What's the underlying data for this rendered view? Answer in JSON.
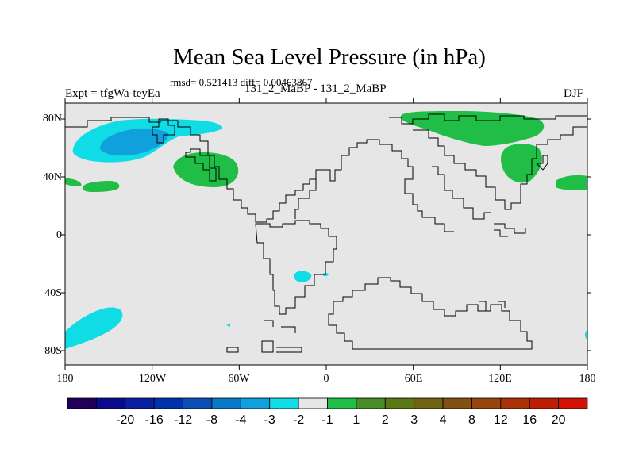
{
  "title": "Mean Sea Level Pressure (in hPa)",
  "stats": "rmsd= 0.521413 diff= 0.00463867",
  "left_label": "Expt = tfgWa-teyEa",
  "center_label": "131_2_MaBP - 131_2_MaBP",
  "right_label": "DJF",
  "lat_labels": [
    "80N",
    "40N",
    "0",
    "40S",
    "80S"
  ],
  "lon_labels": [
    "180",
    "120W",
    "60W",
    "0",
    "60E",
    "120E",
    "180"
  ],
  "colorbar": {
    "colors": [
      "#20005a",
      "#0a0a8c",
      "#0a1ea0",
      "#0032aa",
      "#0a50b4",
      "#0a78c8",
      "#10a0dc",
      "#10dce6",
      "#e6e6e6",
      "#20be46",
      "#468c28",
      "#5a7814",
      "#6e6414",
      "#825010",
      "#96460c",
      "#aa3208",
      "#be1e06",
      "#d21404"
    ],
    "labels": [
      "-20",
      "-16",
      "-12",
      "-8",
      "-4",
      "-3",
      "-2",
      "-1",
      "1",
      "2",
      "3",
      "4",
      "8",
      "12",
      "16",
      "20"
    ]
  },
  "colors": {
    "background": "#e6e6e6",
    "neg_light": "#10dce6",
    "neg_mid": "#10a0dc",
    "pos_light": "#20be46"
  }
}
